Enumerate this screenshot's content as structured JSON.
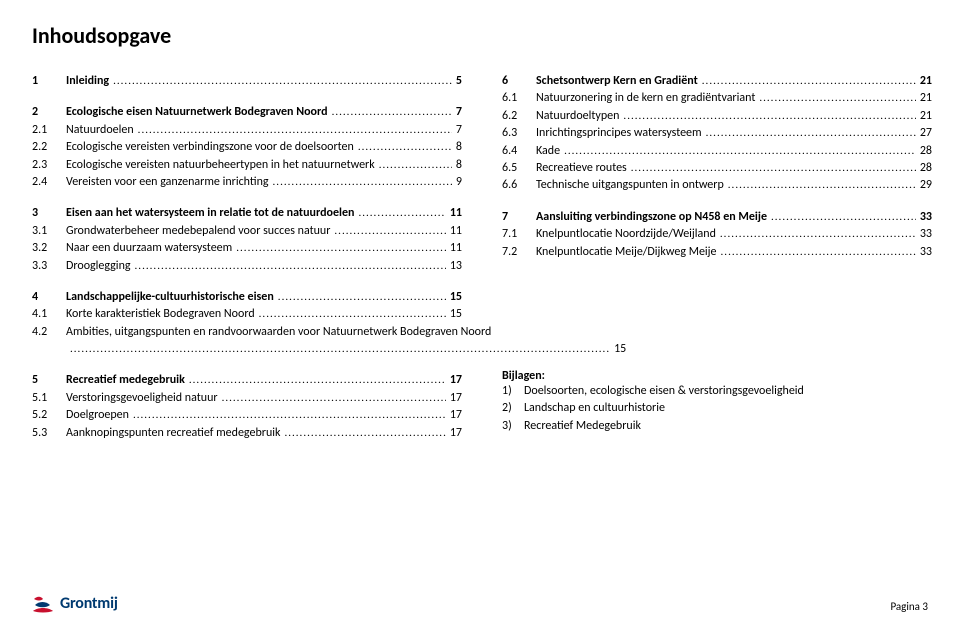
{
  "title": "Inhoudsopgave",
  "logo_text": "Grontmij",
  "footer_page": "Pagina 3",
  "bijlagen_title": "Bijlagen:",
  "left": [
    {
      "rows": [
        {
          "n": "1",
          "t": "Inleiding",
          "p": "5",
          "b": true
        }
      ]
    },
    {
      "rows": [
        {
          "n": "2",
          "t": "Ecologische eisen Natuurnetwerk Bodegraven Noord",
          "p": "7",
          "b": true
        },
        {
          "n": "2.1",
          "t": "Natuurdoelen",
          "p": "7"
        },
        {
          "n": "2.2",
          "t": "Ecologische vereisten verbindingszone voor de doelsoorten",
          "p": "8"
        },
        {
          "n": "2.3",
          "t": "Ecologische vereisten natuurbeheertypen in het natuurnetwerk",
          "p": "8"
        },
        {
          "n": "2.4",
          "t": "Vereisten voor een ganzenarme inrichting",
          "p": "9"
        }
      ]
    },
    {
      "rows": [
        {
          "n": "3",
          "t": "Eisen aan het watersysteem in relatie tot de natuurdoelen",
          "p": "11",
          "b": true
        },
        {
          "n": "3.1",
          "t": "Grondwaterbeheer medebepalend voor succes natuur",
          "p": "11"
        },
        {
          "n": "3.2",
          "t": "Naar een duurzaam watersysteem",
          "p": "11"
        },
        {
          "n": "3.3",
          "t": "Drooglegging",
          "p": "13"
        }
      ]
    },
    {
      "rows": [
        {
          "n": "4",
          "t": "Landschappelijke-cultuurhistorische eisen",
          "p": "15",
          "b": true
        },
        {
          "n": "4.1",
          "t": "Korte karakteristiek Bodegraven Noord",
          "p": "15"
        },
        {
          "n": "4.2",
          "t": "Ambities, uitgangspunten en randvoorwaarden voor Natuurnetwerk Bodegraven Noord",
          "p": "15",
          "multi": true
        }
      ]
    },
    {
      "rows": [
        {
          "n": "5",
          "t": "Recreatief medegebruik",
          "p": "17",
          "b": true
        },
        {
          "n": "5.1",
          "t": "Verstoringsgevoeligheid natuur",
          "p": "17"
        },
        {
          "n": "5.2",
          "t": "Doelgroepen",
          "p": "17"
        },
        {
          "n": "5.3",
          "t": "Aanknopingspunten recreatief medegebruik",
          "p": "17"
        }
      ]
    }
  ],
  "right": [
    {
      "rows": [
        {
          "n": "6",
          "t": "Schetsontwerp Kern en Gradiënt",
          "p": "21",
          "b": true
        },
        {
          "n": "6.1",
          "t": "Natuurzonering in de kern en gradiëntvariant",
          "p": "21"
        },
        {
          "n": "6.2",
          "t": "Natuurdoeltypen",
          "p": "21"
        },
        {
          "n": "6.3",
          "t": "Inrichtingsprincipes watersysteem",
          "p": "27"
        },
        {
          "n": "6.4",
          "t": "Kade",
          "p": "28"
        },
        {
          "n": "6.5",
          "t": "Recreatieve routes",
          "p": "28"
        },
        {
          "n": "6.6",
          "t": "Technische uitgangspunten in ontwerp",
          "p": "29"
        }
      ]
    },
    {
      "rows": [
        {
          "n": "7",
          "t": "Aansluiting verbindingszone op N458 en Meije",
          "p": "33",
          "b": true
        },
        {
          "n": "7.1",
          "t": "Knelpuntlocatie Noordzijde/Weijland",
          "p": "33"
        },
        {
          "n": "7.2",
          "t": "Knelpuntlocatie Meije/Dijkweg Meije",
          "p": "33"
        }
      ]
    }
  ],
  "bijlagen": [
    {
      "n": "1)",
      "t": "Doelsoorten, ecologische eisen & verstoringsgevoeligheid"
    },
    {
      "n": "2)",
      "t": "Landschap en cultuurhistorie"
    },
    {
      "n": "3)",
      "t": "Recreatief Medegebruik"
    }
  ]
}
